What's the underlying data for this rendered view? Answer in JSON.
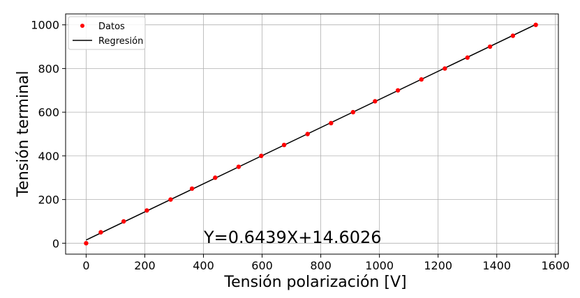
{
  "chart_data": {
    "type": "scatter",
    "title": "",
    "xlabel": "Tensión polarización [V]",
    "ylabel": "Tensión terminal",
    "xlim": [
      -70,
      1610
    ],
    "ylim": [
      -50,
      1050
    ],
    "xticks": [
      0,
      200,
      400,
      600,
      800,
      1000,
      1200,
      1400,
      1600
    ],
    "yticks": [
      0,
      200,
      400,
      600,
      800,
      1000
    ],
    "grid": true,
    "legend_position": "top-left",
    "annotation": "Y=0.6439X+14.6026",
    "series": [
      {
        "name": "Datos",
        "kind": "scatter",
        "color": "#ff0000",
        "x": [
          0,
          50,
          128,
          207,
          288,
          361,
          440,
          520,
          597,
          675,
          755,
          835,
          910,
          985,
          1063,
          1143,
          1223,
          1300,
          1377,
          1455,
          1533
        ],
        "y": [
          0,
          50,
          100,
          150,
          200,
          250,
          300,
          350,
          400,
          450,
          500,
          550,
          600,
          650,
          700,
          750,
          800,
          850,
          900,
          950,
          1000
        ]
      },
      {
        "name": "Regresión",
        "kind": "line",
        "color": "#000000",
        "slope": 0.6439,
        "intercept": 14.6026,
        "x_range": [
          0,
          1533
        ]
      }
    ]
  }
}
